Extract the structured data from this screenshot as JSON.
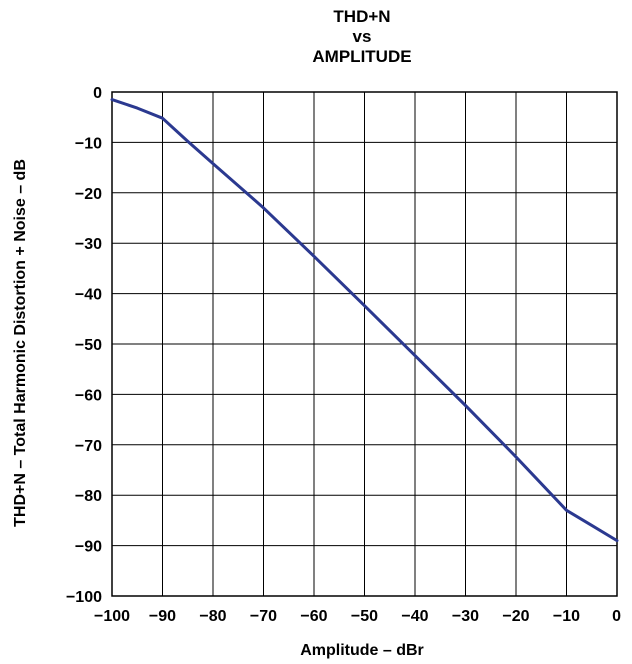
{
  "chart_data": {
    "type": "line",
    "title_lines": [
      "THD+N",
      "vs",
      "AMPLITUDE"
    ],
    "xlabel": "Amplitude – dBr",
    "ylabel": "THD+N – Total Harmonic Distortion + Noise – dB",
    "xlim": [
      -100,
      0
    ],
    "ylim": [
      -100,
      0
    ],
    "x_ticks": [
      -100,
      -90,
      -80,
      -70,
      -60,
      -50,
      -40,
      -30,
      -20,
      -10,
      0
    ],
    "y_ticks": [
      0,
      -10,
      -20,
      -30,
      -40,
      -50,
      -60,
      -70,
      -80,
      -90,
      -100
    ],
    "x_tick_labels": [
      "−100",
      "−90",
      "−80",
      "−70",
      "−60",
      "−50",
      "−40",
      "−30",
      "−20",
      "−10",
      "0"
    ],
    "y_tick_labels": [
      "0",
      "−10",
      "−20",
      "−30",
      "−40",
      "−50",
      "−60",
      "−70",
      "−80",
      "−90",
      "−100"
    ],
    "grid": true,
    "series": [
      {
        "color": "#2b3990",
        "x": [
          -100,
          -95,
          -90,
          -85,
          -80,
          -75,
          -70,
          -60,
          -50,
          -40,
          -30,
          -20,
          -10,
          -5,
          0
        ],
        "y": [
          -1.5,
          -3.2,
          -5.2,
          -9.8,
          -14.2,
          -18.6,
          -23,
          -32.6,
          -42.4,
          -52.3,
          -62.2,
          -72.4,
          -83,
          -86,
          -89
        ]
      }
    ]
  }
}
